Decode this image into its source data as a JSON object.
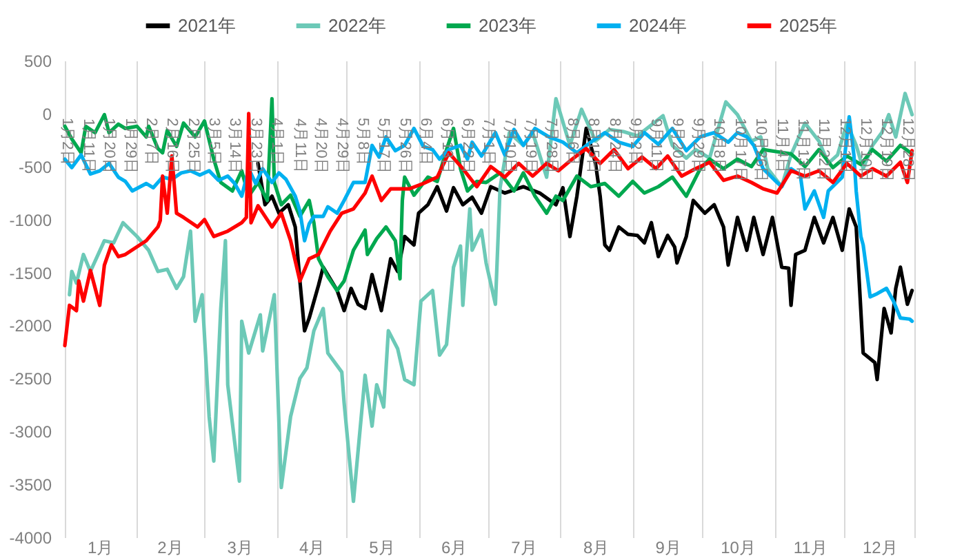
{
  "chart_data": {
    "type": "line",
    "xlim": [
      "--01-01",
      "--12-31"
    ],
    "ylim": [
      -4000,
      500
    ],
    "xticks": [
      {
        "value": "--01-01",
        "label": null
      },
      {
        "value": "--01-16",
        "label": "1月"
      },
      {
        "value": "--02-01",
        "label": null
      },
      {
        "value": "--02-15",
        "label": "2月"
      },
      {
        "value": "--03-01",
        "label": null
      },
      {
        "value": "--03-16",
        "label": "3月"
      },
      {
        "value": "--04-01",
        "label": null
      },
      {
        "value": "--04-16",
        "label": "4月"
      },
      {
        "value": "--05-01",
        "label": null
      },
      {
        "value": "--05-16",
        "label": "5月"
      },
      {
        "value": "--06-01",
        "label": null
      },
      {
        "value": "--06-16",
        "label": "6月"
      },
      {
        "value": "--07-01",
        "label": null
      },
      {
        "value": "--07-16",
        "label": "7月"
      },
      {
        "value": "--08-01",
        "label": null
      },
      {
        "value": "--08-16",
        "label": "8月"
      },
      {
        "value": "--09-01",
        "label": null
      },
      {
        "value": "--09-16",
        "label": "9月"
      },
      {
        "value": "--10-01",
        "label": null
      },
      {
        "value": "--10-16",
        "label": "10月"
      },
      {
        "value": "--11-01",
        "label": null
      },
      {
        "value": "--11-16",
        "label": "11月"
      },
      {
        "value": "--12-01",
        "label": null
      },
      {
        "value": "--12-16",
        "label": "12月"
      },
      {
        "value": "--12-31",
        "label": null
      }
    ],
    "x2lim": [
      "--01-01",
      "--12-31"
    ],
    "x2ticks": [
      {
        "value": "--01-02",
        "label": "1月2日"
      },
      {
        "value": "--01-11",
        "label": "1月11日"
      },
      {
        "value": "--01-20",
        "label": "1月20日"
      },
      {
        "value": "--01-29",
        "label": "1月29日"
      },
      {
        "value": "--02-07",
        "label": "2月7日"
      },
      {
        "value": "--02-16",
        "label": "2月16日"
      },
      {
        "value": "--02-25",
        "label": "2月25日"
      },
      {
        "value": "--03-05",
        "label": "3月5日"
      },
      {
        "value": "--03-14",
        "label": "3月14日"
      },
      {
        "value": "--03-23",
        "label": "3月23日"
      },
      {
        "value": "--04-01",
        "label": "4月1日"
      },
      {
        "value": "--04-11",
        "label": "4月11日"
      },
      {
        "value": "--04-20",
        "label": "4月20日"
      },
      {
        "value": "--04-29",
        "label": "4月29日"
      },
      {
        "value": "--05-08",
        "label": "5月8日"
      },
      {
        "value": "--05-17",
        "label": "5月17日"
      },
      {
        "value": "--05-26",
        "label": "5月26日"
      },
      {
        "value": "--06-04",
        "label": "6月4日"
      },
      {
        "value": "--06-13",
        "label": "6月13日"
      },
      {
        "value": "--06-22",
        "label": "6月22日"
      },
      {
        "value": "--07-01",
        "label": "7月1日"
      },
      {
        "value": "--07-10",
        "label": "7月10日"
      },
      {
        "value": "--07-19",
        "label": "7月19日"
      },
      {
        "value": "--07-28",
        "label": "7月28日"
      },
      {
        "value": "--08-06",
        "label": "8月6日"
      },
      {
        "value": "--08-15",
        "label": "8月15日"
      },
      {
        "value": "--08-24",
        "label": "8月24日"
      },
      {
        "value": "--09-02",
        "label": "9月2日"
      },
      {
        "value": "--09-11",
        "label": "9月11日"
      },
      {
        "value": "--09-20",
        "label": "9月20日"
      },
      {
        "value": "--09-29",
        "label": "9月29日"
      },
      {
        "value": "--10-08",
        "label": "10月8日"
      },
      {
        "value": "--10-17",
        "label": "10月17日"
      },
      {
        "value": "--10-26",
        "label": "10月26日"
      },
      {
        "value": "--11-04",
        "label": "11月4日"
      },
      {
        "value": "--11-13",
        "label": "11月13日"
      },
      {
        "value": "--11-22",
        "label": "11月22日"
      },
      {
        "value": "--12-01",
        "label": "12月1日"
      },
      {
        "value": "--12-10",
        "label": "12月10日"
      },
      {
        "value": "--12-19",
        "label": "12月19日"
      },
      {
        "value": "--12-28",
        "label": "12月28日"
      }
    ],
    "yticks": [
      -4000,
      -3500,
      -3000,
      -2500,
      -2000,
      -1500,
      -1000,
      -500,
      0,
      500
    ],
    "grid": "x",
    "legend": "top",
    "series": [
      {
        "name": "2021年",
        "color": "#000000",
        "x": [
          "--03-24",
          "--03-27",
          "--03-30",
          "--04-02",
          "--04-06",
          "--04-09",
          "--04-11",
          "--04-13",
          "--04-15",
          "--04-19",
          "--04-21",
          "--04-27",
          "--04-30",
          "--05-03",
          "--05-06",
          "--05-09",
          "--05-12",
          "--05-16",
          "--05-20",
          "--05-23",
          "--05-26",
          "--05-30",
          "--06-01",
          "--06-05",
          "--06-09",
          "--06-13",
          "--06-16",
          "--06-20",
          "--06-24",
          "--06-28",
          "--07-02",
          "--07-08",
          "--07-16",
          "--07-23",
          "--07-30",
          "--08-02",
          "--08-05",
          "--08-08",
          "--08-12",
          "--08-16",
          "--08-18",
          "--08-20",
          "--08-22",
          "--08-26",
          "--08-30",
          "--09-03",
          "--09-06",
          "--09-09",
          "--09-12",
          "--09-16",
          "--09-19",
          "--09-20",
          "--09-24",
          "--09-27",
          "--10-02",
          "--10-06",
          "--10-10",
          "--10-12",
          "--10-16",
          "--10-20",
          "--10-23",
          "--10-27",
          "--10-31",
          "--11-04",
          "--11-07",
          "--11-08",
          "--11-10",
          "--11-14",
          "--11-18",
          "--11-22",
          "--11-26",
          "--11-30",
          "--12-03",
          "--12-06",
          "--12-09",
          "--12-14",
          "--12-15",
          "--12-18",
          "--12-21",
          "--12-23",
          "--12-25",
          "--12-28",
          "--12-30"
        ],
        "values": [
          -470,
          -860,
          -780,
          -940,
          -860,
          -1070,
          -1580,
          -2050,
          -1930,
          -1620,
          -1450,
          -1670,
          -1860,
          -1650,
          -1800,
          -1840,
          -1520,
          -1860,
          -1370,
          -1490,
          -1160,
          -1240,
          -940,
          -860,
          -690,
          -920,
          -700,
          -860,
          -790,
          -940,
          -690,
          -750,
          -690,
          -750,
          -860,
          -700,
          -1160,
          -780,
          -140,
          -470,
          -780,
          -1240,
          -1290,
          -1070,
          -1140,
          -1150,
          -1220,
          -1030,
          -1350,
          -1150,
          -1260,
          -1410,
          -1160,
          -820,
          -940,
          -860,
          -1070,
          -1430,
          -980,
          -1290,
          -980,
          -1330,
          -980,
          -1450,
          -1460,
          -1810,
          -1330,
          -1290,
          -980,
          -1220,
          -980,
          -1290,
          -900,
          -1070,
          -2260,
          -2350,
          -2510,
          -1840,
          -2070,
          -1650,
          -1450,
          -1800,
          -1670
        ]
      },
      {
        "name": "2022年",
        "color": "#6cc9b7",
        "x": [
          "--01-03",
          "--01-04",
          "--01-06",
          "--01-09",
          "--01-12",
          "--01-18",
          "--01-22",
          "--01-26",
          "--02-01",
          "--02-06",
          "--02-10",
          "--02-14",
          "--02-18",
          "--02-21",
          "--02-24",
          "--02-26",
          "--02-29",
          "--03-03",
          "--03-05",
          "--03-08",
          "--03-10",
          "--03-11",
          "--03-16",
          "--03-17",
          "--03-20",
          "--03-25",
          "--03-26",
          "--03-31",
          "--04-03",
          "--04-07",
          "--04-11",
          "--04-14",
          "--04-17",
          "--04-21",
          "--04-23",
          "--04-29",
          "--04-30",
          "--05-04",
          "--05-09",
          "--05-12",
          "--05-14",
          "--05-17",
          "--05-19",
          "--05-23",
          "--05-26",
          "--05-30",
          "--06-02",
          "--06-07",
          "--06-10",
          "--06-13",
          "--06-16",
          "--06-19",
          "--06-20",
          "--06-23",
          "--06-24",
          "--06-28",
          "--06-30",
          "--07-04",
          "--07-06",
          "--07-10",
          "--07-16",
          "--07-20",
          "--07-26",
          "--07-30",
          "--08-05",
          "--08-10",
          "--08-16",
          "--08-22",
          "--08-28",
          "--09-03",
          "--09-10",
          "--09-14",
          "--09-18",
          "--09-24",
          "--09-28",
          "--10-04",
          "--10-11",
          "--10-16",
          "--10-22",
          "--10-26",
          "--10-29",
          "--11-04",
          "--11-08",
          "--11-14",
          "--11-20",
          "--11-24",
          "--11-28",
          "--12-02",
          "--12-06",
          "--12-09",
          "--12-13",
          "--12-17",
          "--12-20",
          "--12-23",
          "--12-27",
          "--12-30"
        ],
        "values": [
          -1710,
          -1490,
          -1600,
          -1330,
          -1490,
          -1200,
          -1220,
          -1030,
          -1160,
          -1290,
          -1490,
          -1470,
          -1650,
          -1540,
          -1110,
          -1960,
          -1710,
          -2860,
          -3280,
          -1840,
          -1200,
          -2560,
          -3470,
          -1960,
          -2260,
          -1900,
          -2240,
          -1710,
          -3530,
          -2860,
          -2500,
          -2400,
          -2050,
          -1840,
          -2260,
          -2440,
          -2730,
          -3660,
          -2470,
          -2950,
          -2560,
          -2770,
          -2050,
          -2220,
          -2510,
          -2560,
          -1770,
          -1670,
          -2280,
          -2180,
          -1450,
          -1250,
          -1810,
          -900,
          -1290,
          -1100,
          -1410,
          -1800,
          -700,
          -180,
          -300,
          -180,
          -600,
          140,
          -300,
          40,
          -260,
          -150,
          -170,
          -210,
          -90,
          -20,
          -300,
          -420,
          -340,
          -420,
          110,
          -10,
          -260,
          -220,
          -520,
          -690,
          -390,
          -90,
          -260,
          -470,
          -390,
          -90,
          -300,
          -520,
          -300,
          -180,
          -10,
          -220,
          190,
          -10
        ]
      },
      {
        "name": "2023年",
        "color": "#00a84f",
        "x": [
          "--01-01",
          "--01-04",
          "--01-08",
          "--01-10",
          "--01-14",
          "--01-18",
          "--01-20",
          "--01-24",
          "--01-27",
          "--02-01",
          "--02-05",
          "--02-06",
          "--02-10",
          "--02-12",
          "--02-14",
          "--02-18",
          "--02-21",
          "--02-26",
          "--03-01",
          "--03-05",
          "--03-08",
          "--03-13",
          "--03-17",
          "--03-20",
          "--03-24",
          "--03-28",
          "--03-30",
          "--03-31",
          "--04-03",
          "--04-07",
          "--04-11",
          "--04-15",
          "--04-17",
          "--04-19",
          "--04-23",
          "--04-27",
          "--04-30",
          "--05-04",
          "--05-09",
          "--05-10",
          "--05-14",
          "--05-18",
          "--05-22",
          "--05-24",
          "--05-25",
          "--05-26",
          "--05-30",
          "--06-05",
          "--06-09",
          "--06-13",
          "--06-16",
          "--06-19",
          "--06-22",
          "--06-26",
          "--06-30",
          "--07-06",
          "--07-12",
          "--07-16",
          "--07-21",
          "--07-26",
          "--07-30",
          "--08-02",
          "--08-08",
          "--08-14",
          "--08-20",
          "--08-26",
          "--09-01",
          "--09-06",
          "--09-12",
          "--09-18",
          "--09-24",
          "--09-30",
          "--10-04",
          "--10-10",
          "--10-16",
          "--10-22",
          "--10-27",
          "--11-02",
          "--11-08",
          "--11-14",
          "--11-20",
          "--11-26",
          "--12-02",
          "--12-08",
          "--12-13",
          "--12-19",
          "--12-25",
          "--12-30"
        ],
        "values": [
          -120,
          -240,
          -370,
          -120,
          -180,
          -10,
          -180,
          -100,
          -140,
          -120,
          -220,
          -120,
          -330,
          -370,
          -160,
          -310,
          -90,
          -220,
          -70,
          -430,
          -650,
          -730,
          -540,
          -780,
          -650,
          -820,
          140,
          -650,
          -860,
          -770,
          -970,
          -820,
          -1030,
          -1370,
          -1540,
          -1670,
          -1580,
          -1290,
          -1100,
          -1330,
          -1180,
          -1070,
          -1200,
          -1560,
          -820,
          -600,
          -770,
          -600,
          -640,
          -340,
          -140,
          -520,
          -730,
          -640,
          -650,
          -560,
          -730,
          -560,
          -780,
          -940,
          -780,
          -820,
          -590,
          -690,
          -660,
          -780,
          -640,
          -750,
          -690,
          -600,
          -780,
          -520,
          -430,
          -520,
          -430,
          -500,
          -340,
          -360,
          -380,
          -500,
          -340,
          -510,
          -400,
          -480,
          -340,
          -450,
          -300,
          -380
        ]
      },
      {
        "name": "2024年",
        "color": "#00b0f0",
        "x": [
          "--01-01",
          "--01-04",
          "--01-08",
          "--01-12",
          "--01-16",
          "--01-20",
          "--01-24",
          "--01-27",
          "--01-30",
          "--02-05",
          "--02-08",
          "--02-12",
          "--02-16",
          "--02-20",
          "--02-24",
          "--02-28",
          "--03-03",
          "--03-07",
          "--03-11",
          "--03-14",
          "--03-17",
          "--03-20",
          "--03-23",
          "--03-26",
          "--03-30",
          "--04-02",
          "--04-05",
          "--04-09",
          "--04-11",
          "--04-13",
          "--04-15",
          "--04-17",
          "--04-21",
          "--04-23",
          "--04-27",
          "--04-30",
          "--05-04",
          "--05-09",
          "--05-12",
          "--05-15",
          "--05-18",
          "--05-22",
          "--05-26",
          "--05-30",
          "--06-03",
          "--06-07",
          "--06-10",
          "--06-14",
          "--06-19",
          "--06-22",
          "--06-24",
          "--06-28",
          "--07-04",
          "--07-08",
          "--07-12",
          "--07-16",
          "--07-21",
          "--07-27",
          "--08-02",
          "--08-08",
          "--08-14",
          "--08-20",
          "--08-26",
          "--09-01",
          "--09-06",
          "--09-12",
          "--09-18",
          "--09-24",
          "--09-30",
          "--10-06",
          "--10-12",
          "--10-16",
          "--10-20",
          "--10-23",
          "--10-27",
          "--11-02",
          "--11-04",
          "--11-08",
          "--11-12",
          "--11-14",
          "--11-18",
          "--11-22",
          "--11-24",
          "--11-30",
          "--12-03",
          "--12-05",
          "--12-06",
          "--12-08",
          "--12-09",
          "--12-12",
          "--12-15",
          "--12-19",
          "--12-22",
          "--12-25",
          "--12-29",
          "--12-30"
        ],
        "values": [
          -430,
          -510,
          -390,
          -570,
          -540,
          -470,
          -600,
          -640,
          -730,
          -660,
          -700,
          -600,
          -620,
          -560,
          -540,
          -580,
          -540,
          -630,
          -590,
          -660,
          -780,
          -520,
          -660,
          -520,
          -650,
          -560,
          -620,
          -780,
          -920,
          -1200,
          -1040,
          -970,
          -970,
          -880,
          -940,
          -820,
          -650,
          -650,
          -300,
          -410,
          -220,
          -350,
          -300,
          -140,
          -310,
          -340,
          -430,
          -340,
          -300,
          -430,
          -270,
          -400,
          -180,
          -390,
          -150,
          -300,
          -140,
          -220,
          -270,
          -370,
          -270,
          -180,
          -270,
          -310,
          -180,
          -290,
          -140,
          -350,
          -220,
          -180,
          -270,
          -180,
          -220,
          -300,
          -520,
          -650,
          -690,
          -520,
          -580,
          -900,
          -730,
          -980,
          -730,
          -600,
          -30,
          -390,
          -730,
          -1160,
          -1240,
          -1730,
          -1700,
          -1650,
          -1770,
          -1930,
          -1940,
          -1960
        ]
      },
      {
        "name": "2025年",
        "color": "#ff0000",
        "x": [
          "--01-01",
          "--01-03",
          "--01-06",
          "--01-07",
          "--01-09",
          "--01-12",
          "--01-16",
          "--01-18",
          "--01-21",
          "--01-24",
          "--01-27",
          "--02-05",
          "--02-10",
          "--02-11",
          "--02-12",
          "--02-14",
          "--02-16",
          "--02-18",
          "--02-21",
          "--02-27",
          "--03-01",
          "--03-05",
          "--03-11",
          "--03-17",
          "--03-19",
          "--03-20",
          "--03-21",
          "--03-24",
          "--03-30",
          "--04-03",
          "--04-07",
          "--04-11",
          "--04-15",
          "--04-19",
          "--04-24",
          "--04-29",
          "--05-04",
          "--05-09",
          "--05-12",
          "--05-16",
          "--05-20",
          "--05-28",
          "--06-03",
          "--06-09",
          "--06-14",
          "--06-20",
          "--06-26",
          "--07-02",
          "--07-08",
          "--07-14",
          "--07-20",
          "--07-26",
          "--07-31",
          "--08-06",
          "--08-12",
          "--08-18",
          "--08-24",
          "--08-30",
          "--09-05",
          "--09-11",
          "--09-16",
          "--09-22",
          "--09-28",
          "--10-04",
          "--10-10",
          "--10-16",
          "--10-22",
          "--10-27",
          "--11-02",
          "--11-08",
          "--11-14",
          "--11-20",
          "--11-26",
          "--12-02",
          "--12-08",
          "--12-13",
          "--12-19",
          "--12-25",
          "--12-28",
          "--12-30"
        ],
        "values": [
          -2190,
          -1810,
          -1860,
          -1580,
          -1770,
          -1480,
          -1810,
          -1430,
          -1240,
          -1350,
          -1330,
          -1200,
          -1070,
          -1010,
          -590,
          -940,
          -400,
          -940,
          -980,
          -1070,
          -1000,
          -1160,
          -1110,
          -1030,
          -980,
          0,
          -1030,
          -870,
          -1070,
          -940,
          -1200,
          -1580,
          -1370,
          -1330,
          -1110,
          -940,
          -900,
          -750,
          -590,
          -820,
          -710,
          -710,
          -660,
          -600,
          -370,
          -520,
          -690,
          -500,
          -600,
          -470,
          -590,
          -470,
          -540,
          -430,
          -330,
          -470,
          -340,
          -520,
          -410,
          -520,
          -400,
          -590,
          -520,
          -460,
          -630,
          -590,
          -650,
          -710,
          -750,
          -540,
          -590,
          -540,
          -650,
          -470,
          -590,
          -520,
          -590,
          -460,
          -650,
          -350
        ]
      }
    ]
  }
}
